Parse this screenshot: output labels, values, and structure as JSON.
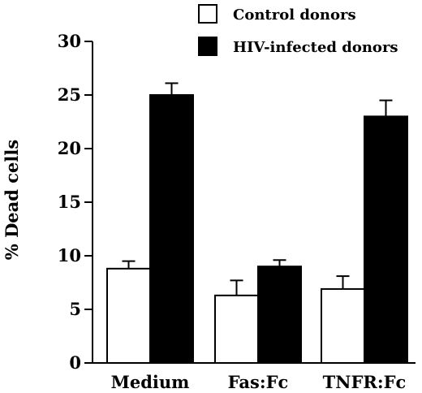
{
  "chart_data": {
    "type": "bar",
    "title": "",
    "xlabel": "",
    "ylabel": "% Dead cells",
    "ylim": [
      0,
      30
    ],
    "yticks": [
      "0",
      "5",
      "10",
      "15",
      "20",
      "25",
      "30"
    ],
    "categories": [
      "Medium",
      "Fas:Fc",
      "TNFR:Fc"
    ],
    "series": [
      {
        "name": "Control donors",
        "fill": "#ffffff",
        "values": [
          8.8,
          6.3,
          6.9
        ],
        "errors": [
          0.7,
          1.4,
          1.2
        ]
      },
      {
        "name": "HIV-infected donors",
        "fill": "#000000",
        "values": [
          25.0,
          9.0,
          23.0
        ],
        "errors": [
          1.1,
          0.6,
          1.5
        ]
      }
    ],
    "legend": "top-right",
    "grid": false
  }
}
